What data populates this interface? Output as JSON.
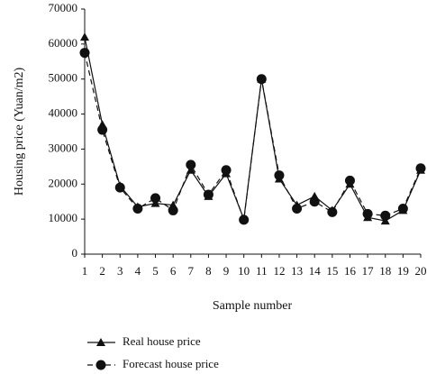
{
  "chart_data": {
    "type": "line",
    "y_label": "Housing price (Yuan/m2)",
    "x_label": "Sample number",
    "x": [
      1,
      2,
      3,
      4,
      5,
      6,
      7,
      8,
      9,
      10,
      11,
      12,
      13,
      14,
      15,
      16,
      17,
      18,
      19,
      20
    ],
    "xlim": [
      1,
      20
    ],
    "xticks": [
      1,
      2,
      3,
      4,
      5,
      6,
      7,
      8,
      9,
      10,
      11,
      12,
      13,
      14,
      15,
      16,
      17,
      18,
      19,
      20
    ],
    "ylim": [
      0,
      70000
    ],
    "yticks": [
      0,
      10000,
      20000,
      30000,
      40000,
      50000,
      60000,
      70000
    ],
    "legend": "bottom-left",
    "series": [
      {
        "name": "Real house price",
        "color": "#111111",
        "linestyle": "solid",
        "marker": "triangle",
        "values": [
          62000,
          37000,
          19500,
          13500,
          14500,
          14000,
          24000,
          16500,
          23000,
          10000,
          50000,
          21500,
          14000,
          16500,
          12500,
          20000,
          10500,
          9500,
          12500,
          24000
        ]
      },
      {
        "name": "Forecast house price",
        "color": "#111111",
        "linestyle": "dashed",
        "marker": "circle",
        "values": [
          57500,
          35500,
          19000,
          13000,
          16000,
          12500,
          25500,
          17000,
          24000,
          9800,
          50000,
          22500,
          13000,
          15000,
          12000,
          21000,
          11500,
          11000,
          13000,
          24500
        ]
      }
    ]
  }
}
